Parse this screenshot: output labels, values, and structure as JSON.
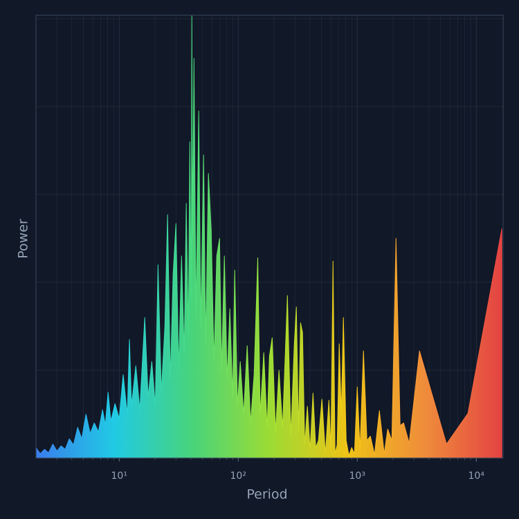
{
  "chart_data": {
    "type": "area",
    "x_label": "Period",
    "y_label": "Power",
    "log_x": true,
    "grid": true,
    "xlim": [
      2.0,
      16800
    ],
    "ylim": [
      0,
      5.04
    ],
    "xticks": [
      {
        "value": 10,
        "label": "10¹"
      },
      {
        "value": 100,
        "label": "10²"
      },
      {
        "value": 1000,
        "label": "10³"
      },
      {
        "value": 10000,
        "label": "10⁴"
      }
    ],
    "xminorticks": [
      3,
      4,
      5,
      6,
      7,
      8,
      9,
      20,
      30,
      40,
      50,
      60,
      70,
      80,
      90,
      200,
      300,
      400,
      500,
      600,
      700,
      800,
      900,
      2000,
      3000,
      4000,
      5000,
      6000,
      7000,
      8000,
      9000
    ],
    "yticks": [
      0,
      1,
      2,
      3,
      4,
      5
    ],
    "gradient": [
      "#3b82f6",
      "#22d3ee",
      "#4ade80",
      "#a3e635",
      "#facc15",
      "#fb923c",
      "#ef4444"
    ],
    "x": [
      2.0,
      2.17,
      2.36,
      2.55,
      2.77,
      3.0,
      3.25,
      3.52,
      3.81,
      4.13,
      4.48,
      4.85,
      5.26,
      5.7,
      6.18,
      6.69,
      7.25,
      7.65,
      8.07,
      8.51,
      9.23,
      10,
      10.8,
      11.7,
      12.2,
      12.7,
      13.8,
      14.9,
      16.4,
      17.5,
      18.8,
      20.1,
      21.2,
      22.6,
      24.2,
      25.5,
      26.9,
      28.4,
      30.0,
      31.6,
      33.4,
      35.2,
      36.6,
      38.1,
      39.2,
      40.3,
      40.8,
      41.3,
      42.5,
      44.2,
      46.6,
      48.5,
      51.2,
      53.3,
      56.2,
      59.3,
      62.6,
      66.0,
      69.7,
      72.5,
      76.5,
      80.7,
      85.1,
      89.8,
      93.5,
      98.6,
      104,
      111,
      119,
      127,
      136,
      146,
      153,
      164,
      175,
      183,
      193,
      206,
      220,
      236,
      259,
      277,
      296,
      308,
      321,
      334,
      347,
      362,
      381,
      402,
      425,
      448,
      472,
      505,
      540,
      578,
      601,
      626,
      651,
      678,
      706,
      735,
      765,
      807,
      851,
      898,
      948,
      1000,
      1055,
      1128,
      1206,
      1289,
      1397,
      1535,
      1686,
      1803,
      1954,
      2117,
      2291,
      2453,
      2731,
      3335,
      4077,
      5623,
      8511,
      16400
    ],
    "values": [
      0.12,
      0.05,
      0.1,
      0.06,
      0.16,
      0.08,
      0.14,
      0.1,
      0.22,
      0.15,
      0.35,
      0.22,
      0.5,
      0.28,
      0.4,
      0.3,
      0.55,
      0.38,
      0.75,
      0.42,
      0.62,
      0.45,
      0.95,
      0.5,
      1.35,
      0.6,
      1.05,
      0.55,
      1.6,
      0.7,
      1.1,
      0.6,
      2.2,
      0.75,
      1.5,
      2.77,
      0.9,
      2.1,
      2.67,
      1.0,
      2.3,
      1.2,
      2.9,
      1.4,
      3.6,
      1.8,
      5.04,
      2.5,
      4.55,
      1.6,
      3.95,
      1.5,
      3.45,
      1.3,
      3.24,
      2.6,
      1.1,
      2.3,
      2.5,
      1.0,
      2.3,
      0.9,
      1.7,
      0.7,
      2.14,
      0.6,
      1.1,
      0.5,
      1.28,
      0.4,
      0.95,
      2.28,
      0.5,
      1.2,
      0.35,
      1.16,
      1.37,
      0.3,
      1.0,
      0.35,
      1.85,
      0.25,
      1.3,
      1.72,
      0.3,
      1.54,
      1.43,
      0.15,
      0.59,
      0.1,
      0.74,
      0.12,
      0.2,
      0.67,
      0.05,
      0.66,
      0.1,
      2.24,
      0.05,
      0.15,
      1.3,
      0.5,
      1.6,
      0.2,
      0.03,
      0.12,
      0.05,
      0.81,
      0.1,
      1.22,
      0.2,
      0.25,
      0.04,
      0.54,
      0.05,
      0.33,
      0.2,
      2.5,
      0.37,
      0.4,
      0.17,
      1.22,
      0.81,
      0.16,
      0.51,
      2.61
    ]
  }
}
